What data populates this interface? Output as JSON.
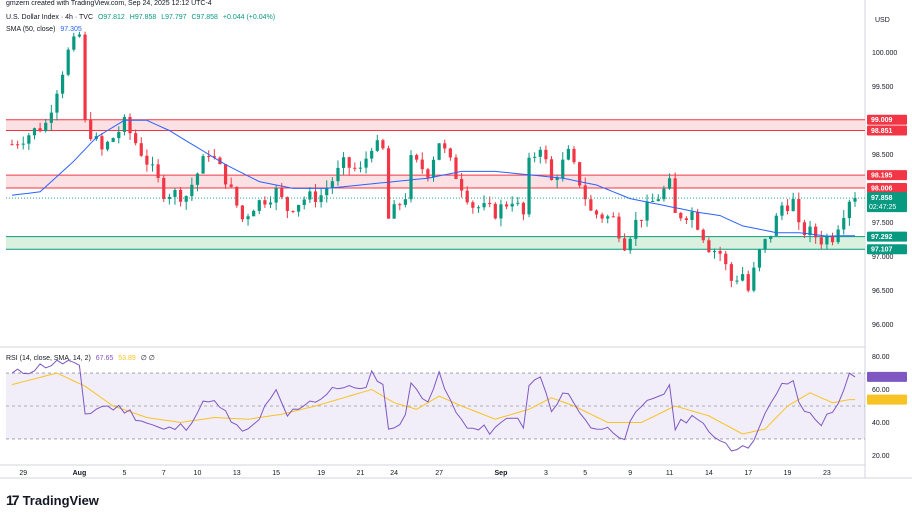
{
  "header": {
    "created": "gmzern created with TradingView.com, Sep 24, 2025 12:12 UTC-4",
    "symbol": "U.S. Dollar Index · 4h · TVC",
    "ohlc": {
      "o": "O97.812",
      "h": "H97.858",
      "l": "L97.797",
      "c": "C97.858",
      "chg": "+0.044 (+0.04%)"
    },
    "sma_label": "SMA (50, close)",
    "sma_value": "97.305",
    "rsi_label": "RSI (14, close, SMA, 14, 2)",
    "rsi_value": "67.65",
    "rsi_sma_value": "53.89",
    "rsi_extra": "∅ ∅"
  },
  "brand": {
    "name": "TradingView",
    "mark": "17"
  },
  "colors": {
    "up": "#089981",
    "down": "#f23645",
    "sma": "#2962ff",
    "rsi": "#7e57c2",
    "rsi_sma": "#f7c325",
    "resistance_zone": "#fcdcdf",
    "support_zone": "#d4efd9"
  },
  "chart_data": [
    {
      "type": "candlestick",
      "currency": "USD",
      "y_ticks": [
        100.0,
        99.5,
        98.5,
        97.5,
        97.0,
        96.5,
        96.0
      ],
      "y_tick_labels": [
        "100.000",
        "99.500",
        "98.500",
        "97.500",
        "97.000",
        "96.500",
        "96.000"
      ],
      "ylim": [
        95.7,
        100.65
      ],
      "x_tick_labels": [
        "29",
        "Aug",
        "5",
        "7",
        "10",
        "13",
        "15",
        "19",
        "21",
        "24",
        "27",
        "Sep",
        "3",
        "5",
        "9",
        "11",
        "14",
        "17",
        "19",
        "23"
      ],
      "x_tick_pos": [
        2,
        12,
        20,
        27,
        33,
        40,
        47,
        55,
        62,
        68,
        76,
        87,
        95,
        102,
        110,
        117,
        124,
        131,
        138,
        145
      ],
      "bar_count": 151,
      "anchors": [
        [
          0,
          98.65
        ],
        [
          6,
          98.95
        ],
        [
          10,
          100.0
        ],
        [
          12,
          100.25
        ],
        [
          13,
          98.95
        ],
        [
          16,
          98.55
        ],
        [
          20,
          98.95
        ],
        [
          24,
          98.4
        ],
        [
          27,
          97.95
        ],
        [
          31,
          97.9
        ],
        [
          35,
          98.55
        ],
        [
          38,
          98.15
        ],
        [
          41,
          97.55
        ],
        [
          43,
          97.75
        ],
        [
          47,
          97.95
        ],
        [
          49,
          97.7
        ],
        [
          52,
          97.85
        ],
        [
          55,
          97.9
        ],
        [
          59,
          98.35
        ],
        [
          62,
          98.25
        ],
        [
          64,
          98.65
        ],
        [
          66,
          98.55
        ],
        [
          67,
          97.55
        ],
        [
          70,
          97.9
        ],
        [
          71,
          98.4
        ],
        [
          74,
          98.25
        ],
        [
          76,
          98.7
        ],
        [
          79,
          98.2
        ],
        [
          82,
          97.75
        ],
        [
          86,
          97.65
        ],
        [
          89,
          97.85
        ],
        [
          91,
          97.6
        ],
        [
          92,
          98.35
        ],
        [
          94,
          98.65
        ],
        [
          96,
          98.1
        ],
        [
          99,
          98.5
        ],
        [
          101,
          98.1
        ],
        [
          103,
          97.65
        ],
        [
          107,
          97.55
        ],
        [
          109,
          97.2
        ],
        [
          111,
          97.5
        ],
        [
          114,
          97.8
        ],
        [
          117,
          98.05
        ],
        [
          118,
          97.6
        ],
        [
          121,
          97.65
        ],
        [
          124,
          97.15
        ],
        [
          126,
          97.05
        ],
        [
          128,
          96.65
        ],
        [
          130,
          96.75
        ],
        [
          131,
          96.5
        ],
        [
          133,
          97.05
        ],
        [
          135,
          97.35
        ],
        [
          137,
          97.75
        ],
        [
          139,
          97.8
        ],
        [
          140,
          97.4
        ],
        [
          142,
          97.35
        ],
        [
          144,
          97.25
        ],
        [
          146,
          97.3
        ],
        [
          149,
          97.86
        ]
      ],
      "sma": {
        "name": "SMA (50, close)",
        "points": [
          [
            0,
            97.9
          ],
          [
            5,
            97.95
          ],
          [
            11,
            98.4
          ],
          [
            15,
            98.75
          ],
          [
            20,
            99.0
          ],
          [
            24,
            99.0
          ],
          [
            28,
            98.85
          ],
          [
            32,
            98.65
          ],
          [
            38,
            98.35
          ],
          [
            44,
            98.1
          ],
          [
            50,
            98.0
          ],
          [
            56,
            98.0
          ],
          [
            62,
            98.05
          ],
          [
            68,
            98.1
          ],
          [
            74,
            98.15
          ],
          [
            80,
            98.25
          ],
          [
            86,
            98.25
          ],
          [
            92,
            98.2
          ],
          [
            98,
            98.15
          ],
          [
            104,
            98.05
          ],
          [
            110,
            97.85
          ],
          [
            116,
            97.75
          ],
          [
            122,
            97.65
          ],
          [
            126,
            97.6
          ],
          [
            130,
            97.45
          ],
          [
            136,
            97.35
          ],
          [
            140,
            97.35
          ],
          [
            145,
            97.3
          ],
          [
            149,
            97.305
          ]
        ]
      },
      "current_price": {
        "value": 97.858,
        "label": "97.858",
        "countdown": "02:47:25"
      },
      "zones": [
        {
          "name": "resistance",
          "from": 98.851,
          "to": 99.009,
          "labels": [
            "99.009",
            "98.851"
          ]
        },
        {
          "name": "resistance",
          "from": 98.006,
          "to": 98.195,
          "labels": [
            "98.195",
            "98.006"
          ]
        },
        {
          "name": "support",
          "from": 97.107,
          "to": 97.292,
          "labels": [
            "97.292",
            "97.107"
          ]
        }
      ]
    },
    {
      "type": "line",
      "name": "RSI (14, close, SMA, 14, 2)",
      "y_ticks": [
        80.0,
        60.0,
        40.0,
        20.0
      ],
      "y_tick_labels": [
        "80.00",
        "60.00",
        "40.00",
        "20.00"
      ],
      "ylim": [
        16,
        84
      ],
      "band": [
        30,
        70
      ],
      "midline": 50,
      "rsi_anchors": [
        [
          0,
          69
        ],
        [
          6,
          75
        ],
        [
          10,
          77
        ],
        [
          12,
          72
        ],
        [
          13,
          45
        ],
        [
          16,
          50
        ],
        [
          20,
          48
        ],
        [
          24,
          40
        ],
        [
          27,
          35
        ],
        [
          31,
          38
        ],
        [
          35,
          55
        ],
        [
          38,
          45
        ],
        [
          41,
          33
        ],
        [
          43,
          38
        ],
        [
          47,
          58
        ],
        [
          49,
          44
        ],
        [
          52,
          52
        ],
        [
          55,
          55
        ],
        [
          59,
          63
        ],
        [
          62,
          58
        ],
        [
          64,
          70
        ],
        [
          66,
          64
        ],
        [
          67,
          34
        ],
        [
          70,
          45
        ],
        [
          71,
          62
        ],
        [
          74,
          55
        ],
        [
          76,
          68
        ],
        [
          79,
          45
        ],
        [
          82,
          36
        ],
        [
          86,
          35
        ],
        [
          89,
          45
        ],
        [
          91,
          36
        ],
        [
          92,
          62
        ],
        [
          94,
          68
        ],
        [
          96,
          46
        ],
        [
          99,
          60
        ],
        [
          101,
          45
        ],
        [
          103,
          38
        ],
        [
          107,
          35
        ],
        [
          109,
          32
        ],
        [
          111,
          44
        ],
        [
          114,
          55
        ],
        [
          117,
          60
        ],
        [
          118,
          38
        ],
        [
          121,
          45
        ],
        [
          124,
          33
        ],
        [
          126,
          31
        ],
        [
          128,
          24
        ],
        [
          130,
          28
        ],
        [
          131,
          22
        ],
        [
          133,
          40
        ],
        [
          135,
          50
        ],
        [
          137,
          62
        ],
        [
          139,
          66
        ],
        [
          140,
          50
        ],
        [
          142,
          45
        ],
        [
          144,
          40
        ],
        [
          146,
          46
        ],
        [
          149,
          67.65
        ]
      ],
      "sma_anchors": [
        [
          0,
          63
        ],
        [
          8,
          70
        ],
        [
          13,
          62
        ],
        [
          18,
          50
        ],
        [
          24,
          43
        ],
        [
          30,
          40
        ],
        [
          36,
          43
        ],
        [
          42,
          42
        ],
        [
          48,
          45
        ],
        [
          54,
          50
        ],
        [
          60,
          56
        ],
        [
          64,
          60
        ],
        [
          68,
          52
        ],
        [
          72,
          48
        ],
        [
          76,
          56
        ],
        [
          80,
          50
        ],
        [
          86,
          42
        ],
        [
          92,
          48
        ],
        [
          96,
          55
        ],
        [
          100,
          50
        ],
        [
          106,
          40
        ],
        [
          112,
          40
        ],
        [
          118,
          50
        ],
        [
          124,
          44
        ],
        [
          130,
          33
        ],
        [
          134,
          36
        ],
        [
          138,
          50
        ],
        [
          142,
          58
        ],
        [
          146,
          52
        ],
        [
          149,
          53.89
        ]
      ]
    }
  ]
}
